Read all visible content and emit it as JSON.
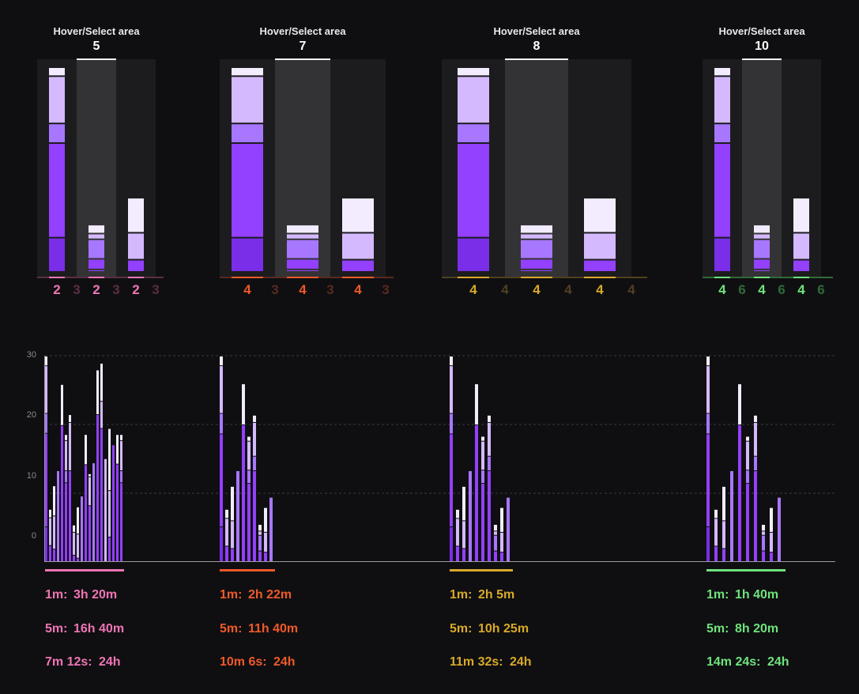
{
  "colors": {
    "bg": "#0f0f11",
    "panel": "#1c1c1e",
    "panel_selected": "#333335",
    "segments": {
      "d": "#7a2ee8",
      "p": "#9340ff",
      "m": "#a877ff",
      "l": "#d5b9ff",
      "w": "#f3ecff"
    }
  },
  "panels": [
    {
      "title": "Hover/Select area",
      "value": "5",
      "color": "#f075b5",
      "dim": "#5a2e45",
      "labels": [
        "2",
        "3",
        "2",
        "3",
        "2",
        "3"
      ]
    },
    {
      "title": "Hover/Select area",
      "value": "7",
      "color": "#f0592a",
      "dim": "#5a2a1e",
      "labels": [
        "4",
        "3",
        "4",
        "3",
        "4",
        "3"
      ]
    },
    {
      "title": "Hover/Select area",
      "value": "8",
      "color": "#d9a92a",
      "dim": "#4f4020",
      "labels": [
        "4",
        "4",
        "4",
        "4",
        "4",
        "4"
      ]
    },
    {
      "title": "Hover/Select area",
      "value": "10",
      "color": "#6fe37c",
      "dim": "#2f6a3a",
      "labels": [
        "4",
        "6",
        "4",
        "6",
        "4",
        "6"
      ]
    }
  ],
  "panel_bars": [
    [
      [
        "d",
        42
      ],
      [
        "p",
        116
      ],
      [
        "m",
        24
      ],
      [
        "l",
        58
      ],
      [
        "w",
        11
      ]
    ],
    [
      [
        "p",
        3
      ],
      [
        "p",
        13
      ],
      [
        "m",
        24
      ],
      [
        "l",
        7
      ],
      [
        "w",
        11
      ]
    ],
    [
      [
        "p",
        15
      ],
      [
        "l",
        33
      ],
      [
        "w",
        43
      ]
    ]
  ],
  "chart_data": {
    "type": "bar",
    "stacked": true,
    "yticks": [
      0,
      10,
      20,
      30
    ],
    "ylim": [
      -4,
      30
    ],
    "grid": true,
    "groups": [
      {
        "color": "#f075b5",
        "bars": [
          [
            [
              "d",
              1.7
            ],
            [
              "p",
              17.2
            ],
            [
              "m",
              20.5
            ],
            [
              "l",
              28.4
            ],
            [
              "w",
              30
            ]
          ],
          [
            [
              "p",
              -1.4
            ],
            [
              "l",
              3.2
            ],
            [
              "w",
              4.6
            ]
          ],
          [
            [
              "p",
              -2
            ],
            [
              "l",
              3.5
            ],
            [
              "w",
              8.5
            ]
          ],
          [
            [
              "m",
              11
            ]
          ],
          [
            [
              "p",
              18.5
            ],
            [
              "w",
              25.3
            ]
          ],
          [
            [
              "p",
              9
            ],
            [
              "m",
              11
            ],
            [
              "l",
              16
            ],
            [
              "w",
              17
            ]
          ],
          [
            [
              "p",
              11
            ],
            [
              "l",
              19
            ],
            [
              "w",
              20.3
            ]
          ],
          [
            [
              "p",
              -3
            ],
            [
              "l",
              0.8
            ],
            [
              "w",
              2
            ]
          ],
          [
            [
              "p",
              -3.5
            ],
            [
              "l",
              0.5
            ],
            [
              "w",
              5
            ]
          ],
          [
            [
              "m",
              6.8
            ]
          ],
          [
            [
              "p",
              12
            ],
            [
              "w",
              17
            ]
          ],
          [
            [
              "p",
              5.2
            ],
            [
              "l",
              10
            ],
            [
              "w",
              10.5
            ]
          ],
          [
            [
              "m",
              12.3
            ]
          ],
          [
            [
              "p",
              20.3
            ],
            [
              "w",
              27.7
            ]
          ],
          [
            [
              "p",
              18
            ],
            [
              "l",
              22.5
            ],
            [
              "w",
              28.8
            ]
          ],
          [
            [
              "l",
              13
            ]
          ],
          [
            [
              "p",
              0
            ],
            [
              "l",
              7.7
            ],
            [
              "w",
              18
            ]
          ],
          [
            [
              "p",
              15.3
            ]
          ],
          [
            [
              "p",
              12.1
            ],
            [
              "w",
              17
            ]
          ],
          [
            [
              "p",
              9
            ],
            [
              "m",
              11
            ],
            [
              "l",
              16
            ],
            [
              "w",
              17
            ]
          ]
        ]
      },
      {
        "color": "#f0592a",
        "bars": "same"
      },
      {
        "color": "#d9a92a",
        "bars": "same"
      },
      {
        "color": "#6fe37c",
        "bars": "same"
      }
    ],
    "shared_bars": [
      [
        [
          "d",
          1.7
        ],
        [
          "p",
          17.1
        ],
        [
          "m",
          20.5
        ],
        [
          "l",
          28.4
        ],
        [
          "w",
          30
        ]
      ],
      [
        [
          "p",
          -1.5
        ],
        [
          "l",
          3.1
        ],
        [
          "w",
          4.6
        ]
      ],
      [
        [
          "p",
          -1.9
        ],
        [
          "l",
          2.7
        ],
        [
          "w",
          8.4
        ]
      ],
      [
        [
          "m",
          11
        ]
      ],
      [
        [
          "p",
          18.6
        ],
        [
          "w",
          25.4
        ]
      ],
      [
        [
          "p",
          8.9
        ],
        [
          "m",
          11.1
        ],
        [
          "l",
          15.9
        ],
        [
          "w",
          16.7
        ]
      ],
      [
        [
          "p",
          11
        ],
        [
          "m",
          13.4
        ],
        [
          "l",
          19
        ],
        [
          "w",
          20.2
        ]
      ],
      [
        [
          "p",
          -2.3
        ],
        [
          "m",
          0.3
        ],
        [
          "l",
          1.0
        ],
        [
          "w",
          2.1
        ]
      ],
      [
        [
          "p",
          -2.5
        ],
        [
          "l",
          0.8
        ],
        [
          "w",
          4.9
        ]
      ],
      [
        [
          "m",
          6.6
        ]
      ]
    ]
  },
  "stats": [
    [
      {
        "k": "1m:",
        "v": "3h 20m"
      },
      {
        "k": "5m:",
        "v": "16h 40m"
      },
      {
        "k": "7m 12s:",
        "v": "24h"
      }
    ],
    [
      {
        "k": "1m:",
        "v": "2h 22m"
      },
      {
        "k": "5m:",
        "v": "11h 40m"
      },
      {
        "k": "10m 6s:",
        "v": "24h"
      }
    ],
    [
      {
        "k": "1m:",
        "v": "2h 5m"
      },
      {
        "k": "5m:",
        "v": "10h 25m"
      },
      {
        "k": "11m 32s:",
        "v": "24h"
      }
    ],
    [
      {
        "k": "1m:",
        "v": "1h 40m"
      },
      {
        "k": "5m:",
        "v": "8h 20m"
      },
      {
        "k": "14m 24s:",
        "v": "24h"
      }
    ]
  ]
}
